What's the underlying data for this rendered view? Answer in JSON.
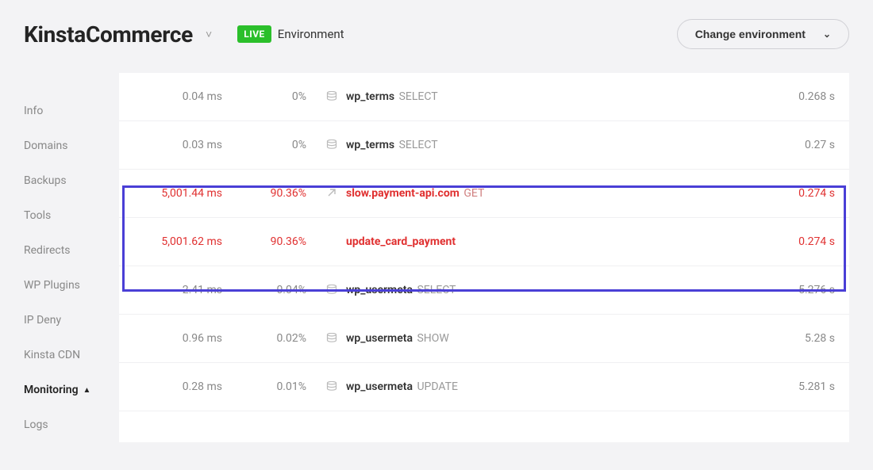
{
  "header": {
    "site_title": "KinstaCommerce",
    "badge": "LIVE",
    "env_label": "Environment",
    "change_env": "Change environment"
  },
  "sidebar": {
    "items": [
      {
        "label": "Info"
      },
      {
        "label": "Domains"
      },
      {
        "label": "Backups"
      },
      {
        "label": "Tools"
      },
      {
        "label": "Redirects"
      },
      {
        "label": "WP Plugins"
      },
      {
        "label": "IP Deny"
      },
      {
        "label": "Kinsta CDN"
      },
      {
        "label": "Monitoring",
        "active": true,
        "icon": "▲"
      },
      {
        "label": "Logs"
      }
    ]
  },
  "rows": [
    {
      "ms": "0.04 ms",
      "pct": "0%",
      "icon": "db",
      "name": "wp_terms",
      "op": "SELECT",
      "time": "0.268 s",
      "hl": false
    },
    {
      "ms": "0.03 ms",
      "pct": "0%",
      "icon": "db",
      "name": "wp_terms",
      "op": "SELECT",
      "time": "0.27 s",
      "hl": false
    },
    {
      "ms": "5,001.44 ms",
      "pct": "90.36%",
      "icon": "ext",
      "name": "slow.payment-api.com",
      "op": "GET",
      "time": "0.274 s",
      "hl": true
    },
    {
      "ms": "5,001.62 ms",
      "pct": "90.36%",
      "icon": "",
      "name": "update_card_payment",
      "op": "",
      "time": "0.274 s",
      "hl": true
    },
    {
      "ms": "2.41 ms",
      "pct": "0.04%",
      "icon": "db",
      "name": "wp_usermeta",
      "op": "SELECT",
      "time": "5.276 s",
      "hl": false
    },
    {
      "ms": "0.96 ms",
      "pct": "0.02%",
      "icon": "db",
      "name": "wp_usermeta",
      "op": "SHOW",
      "time": "5.28 s",
      "hl": false
    },
    {
      "ms": "0.28 ms",
      "pct": "0.01%",
      "icon": "db",
      "name": "wp_usermeta",
      "op": "UPDATE",
      "time": "5.281 s",
      "hl": false
    }
  ]
}
